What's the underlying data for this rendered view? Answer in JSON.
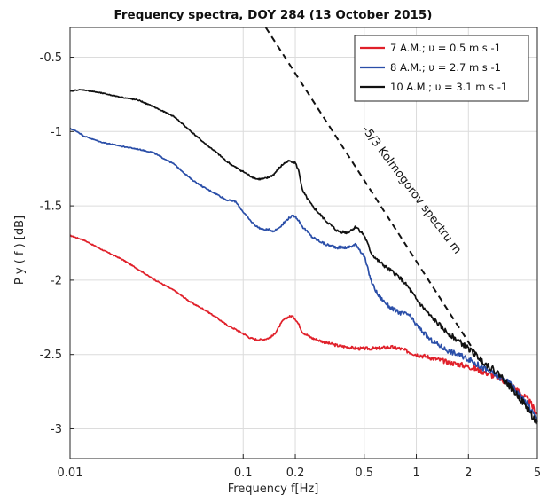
{
  "chart_data": {
    "type": "line",
    "title": "Frequency spectra, DOY 284 (13 October 2015)",
    "xlabel": "Frequency f[Hz]",
    "ylabel": "P y ( f ) [dB]",
    "xscale": "log",
    "xlim": [
      0.01,
      5
    ],
    "ylim": [
      -3.2,
      -0.3
    ],
    "xticks": [
      0.01,
      0.1,
      0.2,
      0.5,
      1,
      2,
      5
    ],
    "xtick_labels": [
      "0.01",
      "0.1",
      "0.2",
      "0.5",
      "1",
      "2",
      "5"
    ],
    "yticks": [
      -3,
      -2.5,
      -2,
      -1.5,
      -1,
      -0.5
    ],
    "ytick_labels": [
      "-3",
      "-2.5",
      "-2",
      "-1.5",
      "-1",
      "-0.5"
    ],
    "grid": true,
    "legend_position": "top-right",
    "series": [
      {
        "name": "7 A.M.; υ = 0.5 m s -1",
        "color": "#e0202a",
        "x": [
          0.01,
          0.012,
          0.015,
          0.02,
          0.025,
          0.03,
          0.04,
          0.05,
          0.06,
          0.07,
          0.08,
          0.09,
          0.1,
          0.11,
          0.12,
          0.13,
          0.14,
          0.15,
          0.16,
          0.17,
          0.18,
          0.19,
          0.2,
          0.21,
          0.22,
          0.25,
          0.3,
          0.35,
          0.4,
          0.45,
          0.5,
          0.6,
          0.7,
          0.8,
          0.9,
          1.0,
          1.2,
          1.5,
          2.0,
          2.5,
          3.0,
          3.5,
          4.0,
          4.5,
          5.0
        ],
        "y": [
          -1.7,
          -1.73,
          -1.79,
          -1.86,
          -1.93,
          -1.99,
          -2.07,
          -2.15,
          -2.2,
          -2.25,
          -2.3,
          -2.33,
          -2.36,
          -2.39,
          -2.4,
          -2.4,
          -2.39,
          -2.37,
          -2.32,
          -2.27,
          -2.25,
          -2.24,
          -2.26,
          -2.3,
          -2.35,
          -2.39,
          -2.42,
          -2.44,
          -2.45,
          -2.46,
          -2.46,
          -2.46,
          -2.45,
          -2.46,
          -2.48,
          -2.5,
          -2.52,
          -2.55,
          -2.58,
          -2.62,
          -2.66,
          -2.7,
          -2.76,
          -2.82,
          -2.9
        ]
      },
      {
        "name": "8 A.M.; υ = 2.7 m s -1",
        "color": "#2a4ea8",
        "x": [
          0.01,
          0.011,
          0.012,
          0.015,
          0.02,
          0.025,
          0.03,
          0.04,
          0.05,
          0.06,
          0.07,
          0.08,
          0.09,
          0.1,
          0.11,
          0.12,
          0.13,
          0.14,
          0.15,
          0.16,
          0.17,
          0.18,
          0.19,
          0.2,
          0.21,
          0.22,
          0.25,
          0.3,
          0.35,
          0.4,
          0.45,
          0.5,
          0.55,
          0.6,
          0.7,
          0.8,
          0.9,
          1.0,
          1.2,
          1.5,
          2.0,
          2.5,
          3.0,
          3.5,
          4.0,
          4.5,
          5.0
        ],
        "y": [
          -0.98,
          -1.0,
          -1.03,
          -1.07,
          -1.1,
          -1.12,
          -1.14,
          -1.22,
          -1.32,
          -1.38,
          -1.42,
          -1.46,
          -1.47,
          -1.54,
          -1.6,
          -1.64,
          -1.66,
          -1.66,
          -1.67,
          -1.65,
          -1.62,
          -1.59,
          -1.57,
          -1.57,
          -1.6,
          -1.64,
          -1.71,
          -1.76,
          -1.78,
          -1.78,
          -1.76,
          -1.84,
          -2.01,
          -2.1,
          -2.18,
          -2.22,
          -2.23,
          -2.3,
          -2.4,
          -2.47,
          -2.53,
          -2.6,
          -2.65,
          -2.7,
          -2.78,
          -2.85,
          -2.95
        ]
      },
      {
        "name": "10 A.M.; υ = 3.1 m s -1",
        "color": "#111111",
        "x": [
          0.01,
          0.011,
          0.012,
          0.015,
          0.02,
          0.025,
          0.03,
          0.04,
          0.05,
          0.06,
          0.07,
          0.08,
          0.09,
          0.1,
          0.11,
          0.12,
          0.13,
          0.14,
          0.15,
          0.16,
          0.17,
          0.18,
          0.19,
          0.2,
          0.21,
          0.22,
          0.25,
          0.3,
          0.35,
          0.4,
          0.45,
          0.5,
          0.55,
          0.6,
          0.7,
          0.8,
          0.9,
          1.0,
          1.2,
          1.5,
          2.0,
          2.5,
          3.0,
          3.5,
          4.0,
          4.5,
          5.0
        ],
        "y": [
          -0.73,
          -0.72,
          -0.72,
          -0.74,
          -0.77,
          -0.79,
          -0.83,
          -0.9,
          -1.0,
          -1.08,
          -1.14,
          -1.2,
          -1.24,
          -1.27,
          -1.3,
          -1.32,
          -1.32,
          -1.31,
          -1.29,
          -1.25,
          -1.22,
          -1.2,
          -1.2,
          -1.21,
          -1.27,
          -1.4,
          -1.5,
          -1.6,
          -1.67,
          -1.68,
          -1.64,
          -1.7,
          -1.82,
          -1.87,
          -1.93,
          -1.98,
          -2.05,
          -2.13,
          -2.24,
          -2.35,
          -2.46,
          -2.56,
          -2.63,
          -2.72,
          -2.8,
          -2.88,
          -2.97
        ]
      }
    ],
    "reference_line": {
      "label": "-5/3 Kolmogorov spectru m",
      "style": "dashed",
      "color": "#111111",
      "x": [
        0.135,
        2.4
      ],
      "y": [
        -0.3,
        -2.56
      ]
    }
  }
}
